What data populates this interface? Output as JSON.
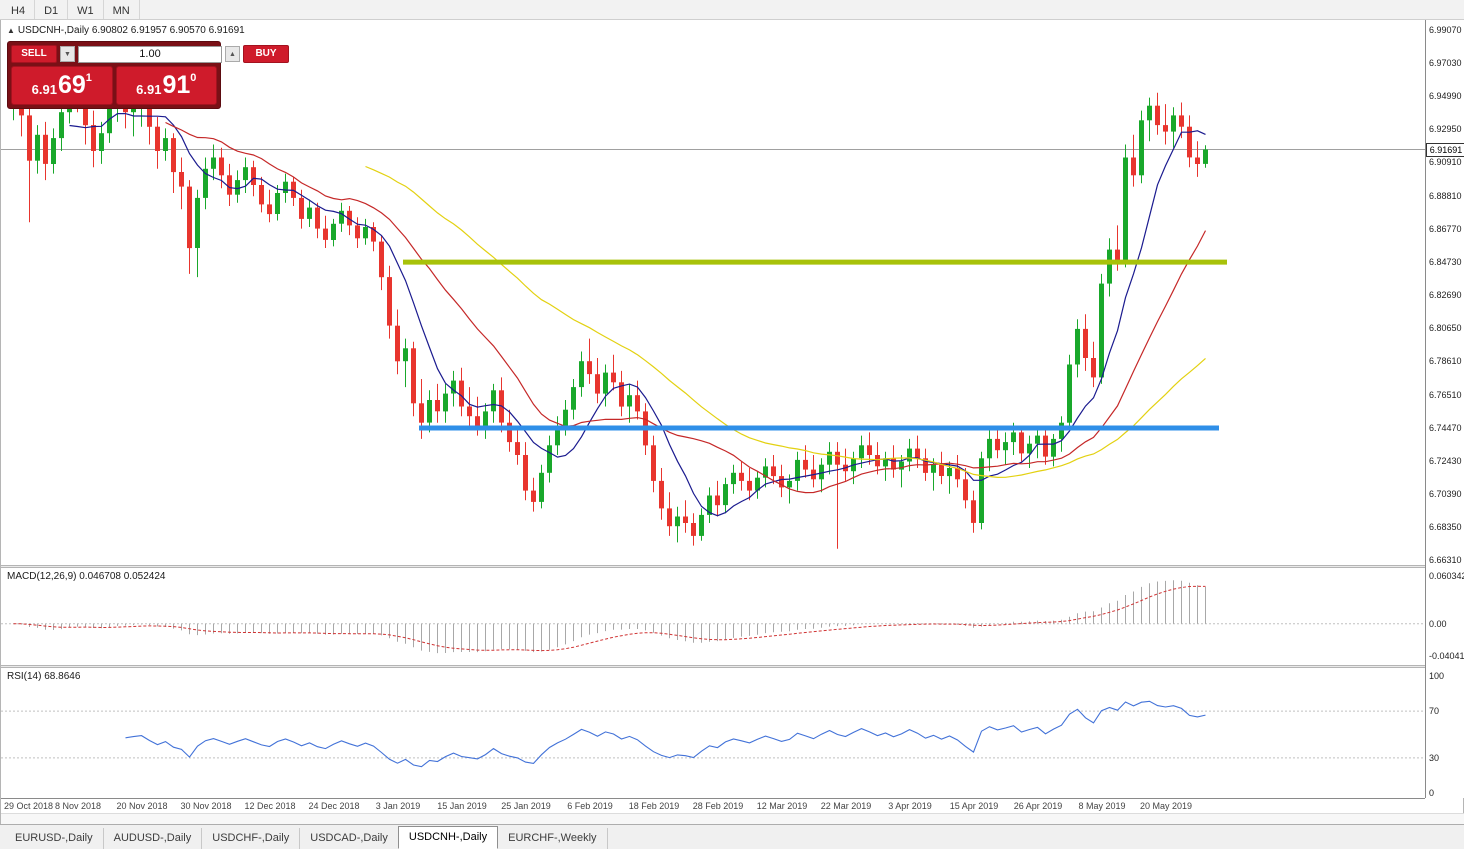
{
  "toolbar": {
    "timeframes": [
      "H4",
      "D1",
      "W1",
      "MN"
    ]
  },
  "icons": {
    "panel_toggle": "▲",
    "spin_up": "▲",
    "spin_down": "▼"
  },
  "chart": {
    "title": "USDCNH-,Daily 6.90802 6.91957 6.90570 6.91691",
    "current_price": "6.91691",
    "trade_panel": {
      "sell_label": "SELL",
      "buy_label": "BUY",
      "volume": "1.00",
      "bid_main": "6.91",
      "bid_big": "69",
      "bid_sup": "1",
      "ask_main": "6.91",
      "ask_big": "91",
      "ask_sup": "0"
    }
  },
  "macd": {
    "label": "MACD(12,26,9) 0.046708 0.052424",
    "axis": [
      "0.060342",
      "0.00",
      "-0.040415"
    ]
  },
  "rsi": {
    "label": "RSI(14) 68.8646",
    "axis": [
      "100",
      "70",
      "30",
      "0"
    ]
  },
  "tabs": [
    {
      "label": "EURUSD-,Daily",
      "active": false
    },
    {
      "label": "AUDUSD-,Daily",
      "active": false
    },
    {
      "label": "USDCHF-,Daily",
      "active": false
    },
    {
      "label": "USDCAD-,Daily",
      "active": false
    },
    {
      "label": "USDCNH-,Daily",
      "active": true
    },
    {
      "label": "EURCHF-,Weekly",
      "active": false
    }
  ],
  "chart_data": {
    "type": "candlestick",
    "symbol": "USDCNH-",
    "timeframe": "Daily",
    "ohlc_display": {
      "open": "6.90802",
      "high": "6.91957",
      "low": "6.90570",
      "close": "6.91691"
    },
    "ylim": [
      6.66,
      6.997
    ],
    "y_axis_labels": [
      "6.99070",
      "6.97030",
      "6.94990",
      "6.92950",
      "6.90910",
      "6.88810",
      "6.86770",
      "6.84730",
      "6.82690",
      "6.80650",
      "6.78610",
      "6.76510",
      "6.74470",
      "6.72430",
      "6.70390",
      "6.68350",
      "6.66310"
    ],
    "x_labels": [
      "29 Oct 2018",
      "8 Nov 2018",
      "20 Nov 2018",
      "30 Nov 2018",
      "12 Dec 2018",
      "24 Dec 2018",
      "3 Jan 2019",
      "15 Jan 2019",
      "25 Jan 2019",
      "6 Feb 2019",
      "18 Feb 2019",
      "28 Feb 2019",
      "12 Mar 2019",
      "22 Mar 2019",
      "3 Apr 2019",
      "15 Apr 2019",
      "26 Apr 2019",
      "8 May 2019",
      "20 May 2019"
    ],
    "bars_per_label": 8,
    "bid_line": 6.91691,
    "moving_averages": [
      {
        "period": 8,
        "color": "#1b1b8f"
      },
      {
        "period": 20,
        "color": "#c52828"
      },
      {
        "period": 45,
        "color": "#e3d111"
      }
    ],
    "hlines": [
      {
        "name": "resistance-line",
        "price": 6.8473,
        "color": "#a8c20a",
        "width": 5,
        "start_bar": 49,
        "end_bar": 152
      },
      {
        "name": "support-line",
        "price": 6.7447,
        "color": "#2f8fe8",
        "width": 5,
        "start_bar": 51,
        "end_bar": 151
      }
    ],
    "indicators": [
      {
        "name": "MACD",
        "params": "12,26,9",
        "values": [
          0.046708,
          0.052424
        ],
        "axis_labels": [
          "0.060342",
          "0.00",
          "-0.040415"
        ],
        "ylim": [
          -0.052,
          0.07
        ]
      },
      {
        "name": "RSI",
        "params": "14",
        "value": 68.8646,
        "axis_labels": [
          "100",
          "70",
          "30",
          "0"
        ],
        "levels": [
          70,
          30
        ]
      }
    ],
    "colors": {
      "up": "#19a82b",
      "down": "#e8352e",
      "macd_hist": "#a8a8a8",
      "macd_signal": "#d03434",
      "rsi_line": "#4272d8",
      "bid_line_color": "#a0a0a0",
      "level_dash": "#c0c0c0"
    },
    "candles": [
      [
        6.948,
        6.96,
        6.935,
        6.952
      ],
      [
        6.952,
        6.958,
        6.925,
        6.938
      ],
      [
        6.938,
        6.944,
        6.872,
        6.91
      ],
      [
        6.91,
        6.932,
        6.902,
        6.926
      ],
      [
        6.926,
        6.934,
        6.898,
        6.908
      ],
      [
        6.908,
        6.93,
        6.902,
        6.924
      ],
      [
        6.924,
        6.946,
        6.916,
        6.94
      ],
      [
        6.94,
        6.962,
        6.933,
        6.956
      ],
      [
        6.956,
        6.964,
        6.94,
        6.947
      ],
      [
        6.947,
        6.955,
        6.92,
        6.932
      ],
      [
        6.932,
        6.941,
        6.906,
        6.916
      ],
      [
        6.916,
        6.934,
        6.908,
        6.927
      ],
      [
        6.927,
        6.95,
        6.921,
        6.944
      ],
      [
        6.944,
        6.958,
        6.934,
        6.951
      ],
      [
        6.951,
        6.957,
        6.93,
        6.94
      ],
      [
        6.94,
        6.951,
        6.925,
        6.944
      ],
      [
        6.944,
        6.953,
        6.931,
        6.947
      ],
      [
        6.947,
        6.95,
        6.92,
        6.931
      ],
      [
        6.931,
        6.937,
        6.905,
        6.916
      ],
      [
        6.916,
        6.93,
        6.91,
        6.924
      ],
      [
        6.924,
        6.927,
        6.89,
        6.903
      ],
      [
        6.903,
        6.912,
        6.88,
        6.894
      ],
      [
        6.894,
        6.898,
        6.84,
        6.856
      ],
      [
        6.856,
        6.892,
        6.838,
        6.887
      ],
      [
        6.887,
        6.912,
        6.88,
        6.905
      ],
      [
        6.905,
        6.92,
        6.898,
        6.912
      ],
      [
        6.912,
        6.918,
        6.893,
        6.901
      ],
      [
        6.901,
        6.908,
        6.882,
        6.889
      ],
      [
        6.889,
        6.904,
        6.884,
        6.898
      ],
      [
        6.898,
        6.912,
        6.89,
        6.906
      ],
      [
        6.906,
        6.91,
        6.888,
        6.895
      ],
      [
        6.895,
        6.9,
        6.878,
        6.883
      ],
      [
        6.883,
        6.892,
        6.872,
        6.877
      ],
      [
        6.877,
        6.895,
        6.873,
        6.89
      ],
      [
        6.89,
        6.902,
        6.884,
        6.897
      ],
      [
        6.897,
        6.9,
        6.882,
        6.887
      ],
      [
        6.887,
        6.892,
        6.868,
        6.874
      ],
      [
        6.874,
        6.886,
        6.869,
        6.881
      ],
      [
        6.881,
        6.884,
        6.862,
        6.868
      ],
      [
        6.868,
        6.876,
        6.856,
        6.861
      ],
      [
        6.861,
        6.874,
        6.857,
        6.871
      ],
      [
        6.871,
        6.884,
        6.866,
        6.879
      ],
      [
        6.879,
        6.882,
        6.864,
        6.87
      ],
      [
        6.87,
        6.875,
        6.856,
        6.862
      ],
      [
        6.862,
        6.874,
        6.858,
        6.869
      ],
      [
        6.869,
        6.872,
        6.854,
        6.86
      ],
      [
        6.86,
        6.864,
        6.83,
        6.838
      ],
      [
        6.838,
        6.845,
        6.8,
        6.808
      ],
      [
        6.808,
        6.818,
        6.778,
        6.786
      ],
      [
        6.786,
        6.8,
        6.77,
        6.794
      ],
      [
        6.794,
        6.798,
        6.752,
        6.76
      ],
      [
        6.76,
        6.775,
        6.738,
        6.748
      ],
      [
        6.748,
        6.768,
        6.742,
        6.762
      ],
      [
        6.762,
        6.772,
        6.748,
        6.755
      ],
      [
        6.755,
        6.772,
        6.748,
        6.766
      ],
      [
        6.766,
        6.78,
        6.758,
        6.774
      ],
      [
        6.774,
        6.782,
        6.752,
        6.758
      ],
      [
        6.758,
        6.77,
        6.746,
        6.752
      ],
      [
        6.752,
        6.764,
        6.74,
        6.746
      ],
      [
        6.746,
        6.76,
        6.738,
        6.755
      ],
      [
        6.755,
        6.772,
        6.748,
        6.768
      ],
      [
        6.768,
        6.776,
        6.742,
        6.748
      ],
      [
        6.748,
        6.756,
        6.73,
        6.736
      ],
      [
        6.736,
        6.744,
        6.722,
        6.728
      ],
      [
        6.728,
        6.736,
        6.7,
        6.706
      ],
      [
        6.706,
        6.714,
        6.693,
        6.699
      ],
      [
        6.699,
        6.722,
        6.695,
        6.717
      ],
      [
        6.717,
        6.74,
        6.711,
        6.734
      ],
      [
        6.734,
        6.752,
        6.728,
        6.746
      ],
      [
        6.746,
        6.762,
        6.74,
        6.756
      ],
      [
        6.756,
        6.775,
        6.75,
        6.77
      ],
      [
        6.77,
        6.792,
        6.764,
        6.786
      ],
      [
        6.786,
        6.8,
        6.772,
        6.778
      ],
      [
        6.778,
        6.788,
        6.76,
        6.766
      ],
      [
        6.766,
        6.784,
        6.758,
        6.779
      ],
      [
        6.779,
        6.79,
        6.768,
        6.773
      ],
      [
        6.773,
        6.78,
        6.752,
        6.758
      ],
      [
        6.758,
        6.772,
        6.748,
        6.765
      ],
      [
        6.765,
        6.774,
        6.75,
        6.755
      ],
      [
        6.755,
        6.76,
        6.728,
        6.734
      ],
      [
        6.734,
        6.74,
        6.705,
        6.712
      ],
      [
        6.712,
        6.72,
        6.688,
        6.695
      ],
      [
        6.695,
        6.705,
        6.678,
        6.684
      ],
      [
        6.684,
        6.696,
        6.674,
        6.69
      ],
      [
        6.69,
        6.7,
        6.68,
        6.686
      ],
      [
        6.686,
        6.692,
        6.672,
        6.678
      ],
      [
        6.678,
        6.695,
        6.675,
        6.691
      ],
      [
        6.691,
        6.708,
        6.686,
        6.703
      ],
      [
        6.703,
        6.712,
        6.69,
        6.697
      ],
      [
        6.697,
        6.714,
        6.692,
        6.71
      ],
      [
        6.71,
        6.722,
        6.704,
        6.717
      ],
      [
        6.717,
        6.724,
        6.706,
        6.712
      ],
      [
        6.712,
        6.72,
        6.7,
        6.706
      ],
      [
        6.706,
        6.718,
        6.701,
        6.714
      ],
      [
        6.714,
        6.726,
        6.708,
        6.721
      ],
      [
        6.721,
        6.728,
        6.71,
        6.715
      ],
      [
        6.715,
        6.722,
        6.702,
        6.708
      ],
      [
        6.708,
        6.716,
        6.698,
        6.712
      ],
      [
        6.712,
        6.73,
        6.706,
        6.725
      ],
      [
        6.725,
        6.734,
        6.714,
        6.719
      ],
      [
        6.719,
        6.728,
        6.708,
        6.713
      ],
      [
        6.713,
        6.726,
        6.705,
        6.722
      ],
      [
        6.722,
        6.736,
        6.716,
        6.73
      ],
      [
        6.73,
        6.736,
        6.67,
        6.722
      ],
      [
        6.722,
        6.732,
        6.712,
        6.718
      ],
      [
        6.718,
        6.73,
        6.71,
        6.726
      ],
      [
        6.726,
        6.74,
        6.72,
        6.734
      ],
      [
        6.734,
        6.742,
        6.722,
        6.728
      ],
      [
        6.728,
        6.736,
        6.716,
        6.721
      ],
      [
        6.721,
        6.73,
        6.712,
        6.726
      ],
      [
        6.726,
        6.734,
        6.714,
        6.719
      ],
      [
        6.719,
        6.728,
        6.708,
        6.724
      ],
      [
        6.724,
        6.738,
        6.718,
        6.732
      ],
      [
        6.732,
        6.74,
        6.72,
        6.726
      ],
      [
        6.726,
        6.732,
        6.712,
        6.717
      ],
      [
        6.717,
        6.726,
        6.706,
        6.722
      ],
      [
        6.722,
        6.73,
        6.71,
        6.715
      ],
      [
        6.715,
        6.724,
        6.704,
        6.72
      ],
      [
        6.72,
        6.728,
        6.708,
        6.713
      ],
      [
        6.713,
        6.72,
        6.695,
        6.7
      ],
      [
        6.7,
        6.706,
        6.68,
        6.686
      ],
      [
        6.686,
        6.73,
        6.682,
        6.726
      ],
      [
        6.726,
        6.744,
        6.718,
        6.738
      ],
      [
        6.738,
        6.746,
        6.726,
        6.731
      ],
      [
        6.731,
        6.742,
        6.722,
        6.736
      ],
      [
        6.736,
        6.748,
        6.728,
        6.742
      ],
      [
        6.742,
        6.746,
        6.724,
        6.729
      ],
      [
        6.729,
        6.74,
        6.72,
        6.735
      ],
      [
        6.735,
        6.745,
        6.726,
        6.74
      ],
      [
        6.74,
        6.744,
        6.722,
        6.727
      ],
      [
        6.727,
        6.741,
        6.721,
        6.738
      ],
      [
        6.738,
        6.752,
        6.73,
        6.748
      ],
      [
        6.748,
        6.79,
        6.744,
        6.784
      ],
      [
        6.784,
        6.812,
        6.776,
        6.806
      ],
      [
        6.806,
        6.815,
        6.78,
        6.788
      ],
      [
        6.788,
        6.798,
        6.77,
        6.776
      ],
      [
        6.776,
        6.84,
        6.772,
        6.834
      ],
      [
        6.834,
        6.862,
        6.826,
        6.855
      ],
      [
        6.855,
        6.87,
        6.842,
        6.848
      ],
      [
        6.848,
        6.92,
        6.844,
        6.912
      ],
      [
        6.912,
        6.926,
        6.894,
        6.901
      ],
      [
        6.901,
        6.941,
        6.896,
        6.935
      ],
      [
        6.935,
        6.949,
        6.922,
        6.944
      ],
      [
        6.944,
        6.952,
        6.926,
        6.932
      ],
      [
        6.932,
        6.945,
        6.92,
        6.928
      ],
      [
        6.928,
        6.943,
        6.918,
        6.938
      ],
      [
        6.938,
        6.946,
        6.924,
        6.931
      ],
      [
        6.931,
        6.938,
        6.906,
        6.912
      ],
      [
        6.912,
        6.922,
        6.9,
        6.908
      ],
      [
        6.90802,
        6.91957,
        6.9057,
        6.91691
      ]
    ]
  }
}
